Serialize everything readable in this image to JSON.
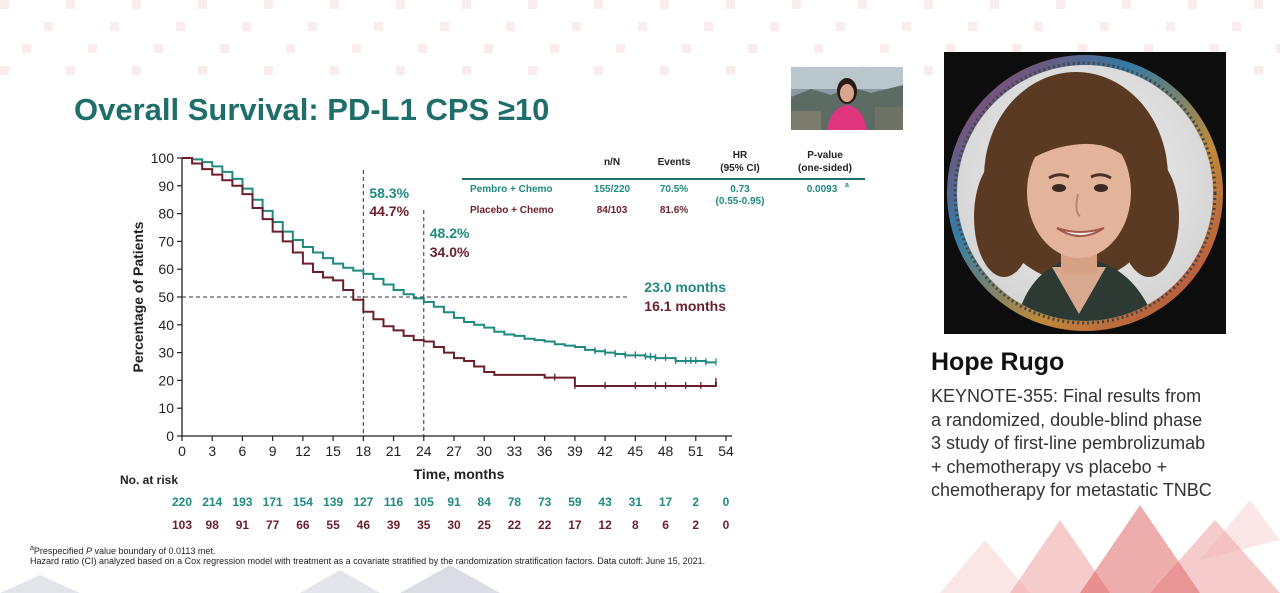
{
  "slide": {
    "title": "Overall Survival: PD-L1 CPS ≥10",
    "footnote_1_sup": "a",
    "footnote_1_pre": "Prespecified ",
    "footnote_1_italic": "P",
    "footnote_1_post": " value boundary of 0.0113 met.",
    "footnote_2": "Hazard ratio (CI) analyzed based on a Cox regression model with treatment as a covariate stratified by the randomization stratification factors. Data cutoff: June 15, 2021."
  },
  "stats_table": {
    "headers": {
      "n": "n/N",
      "events": "Events",
      "hr_line1": "HR",
      "hr_line2": "(95% CI)",
      "p_line1": "P-value",
      "p_line2": "(one-sided)"
    },
    "rows": [
      {
        "name": "Pembro + Chemo",
        "n": "155/220",
        "events": "70.5%",
        "hr": "0.73",
        "hr_ci": "(0.55-0.95)",
        "p": "0.0093",
        "p_sup": "a"
      },
      {
        "name": "Placebo + Chemo",
        "n": "84/103",
        "events": "81.6%"
      }
    ]
  },
  "colors": {
    "pembro": "#1f8a80",
    "placebo": "#6b1f2c",
    "title": "#1f6e6b"
  },
  "chart_data": {
    "type": "line",
    "title": "",
    "xlabel": "Time, months",
    "ylabel": "Percentage of Patients",
    "xlim": [
      0,
      54
    ],
    "ylim": [
      0,
      100
    ],
    "x_ticks": [
      0,
      3,
      6,
      9,
      12,
      15,
      18,
      21,
      24,
      27,
      30,
      33,
      36,
      39,
      42,
      45,
      48,
      51,
      54
    ],
    "y_ticks": [
      0,
      10,
      20,
      30,
      40,
      50,
      60,
      70,
      80,
      90,
      100
    ],
    "grid": false,
    "series": [
      {
        "name": "Pembro + Chemo",
        "color": "#1f8a80",
        "points": [
          [
            0,
            100
          ],
          [
            1,
            99.5
          ],
          [
            2,
            98.5
          ],
          [
            3,
            97
          ],
          [
            4,
            95
          ],
          [
            5,
            92.5
          ],
          [
            6,
            89
          ],
          [
            7,
            85
          ],
          [
            8,
            81
          ],
          [
            9,
            77
          ],
          [
            10,
            73.5
          ],
          [
            11,
            70.5
          ],
          [
            12,
            68
          ],
          [
            13,
            66
          ],
          [
            14,
            64
          ],
          [
            15,
            62
          ],
          [
            16,
            60.5
          ],
          [
            17,
            59.5
          ],
          [
            18,
            58.3
          ],
          [
            19,
            56.5
          ],
          [
            20,
            54.5
          ],
          [
            21,
            52.5
          ],
          [
            22,
            51
          ],
          [
            23,
            49.5
          ],
          [
            24,
            48.2
          ],
          [
            25,
            46.5
          ],
          [
            26,
            44.5
          ],
          [
            27,
            42.5
          ],
          [
            28,
            41
          ],
          [
            29,
            40
          ],
          [
            30,
            39
          ],
          [
            31,
            37.5
          ],
          [
            32,
            36.5
          ],
          [
            33,
            36
          ],
          [
            34,
            35
          ],
          [
            35,
            34.5
          ],
          [
            36,
            34
          ],
          [
            37,
            33
          ],
          [
            38,
            32.5
          ],
          [
            39,
            32
          ],
          [
            40,
            31
          ],
          [
            41,
            30.5
          ],
          [
            42,
            30
          ],
          [
            43,
            29.5
          ],
          [
            44,
            29
          ],
          [
            45,
            29
          ],
          [
            46,
            28.5
          ],
          [
            47,
            28
          ],
          [
            48,
            28
          ],
          [
            49,
            27
          ],
          [
            50,
            27
          ],
          [
            51,
            27
          ],
          [
            52,
            26.5
          ],
          [
            53,
            26.5
          ]
        ],
        "censor_x": [
          4,
          41,
          42,
          43,
          44,
          45,
          46,
          46.5,
          47,
          48,
          49,
          50,
          50.5,
          51,
          52,
          53
        ]
      },
      {
        "name": "Placebo + Chemo",
        "color": "#6b1f2c",
        "points": [
          [
            0,
            100
          ],
          [
            1,
            98
          ],
          [
            2,
            96
          ],
          [
            3,
            94
          ],
          [
            4,
            92
          ],
          [
            5,
            90
          ],
          [
            6,
            87
          ],
          [
            7,
            82
          ],
          [
            8,
            78
          ],
          [
            9,
            73.5
          ],
          [
            10,
            70
          ],
          [
            11,
            66
          ],
          [
            12,
            62
          ],
          [
            13,
            59
          ],
          [
            14,
            57
          ],
          [
            15,
            56
          ],
          [
            16,
            52.5
          ],
          [
            17,
            49
          ],
          [
            18,
            44.7
          ],
          [
            19,
            42
          ],
          [
            20,
            39.5
          ],
          [
            21,
            38
          ],
          [
            22,
            36
          ],
          [
            23,
            34.5
          ],
          [
            24,
            34
          ],
          [
            25,
            32
          ],
          [
            26,
            30
          ],
          [
            27,
            28
          ],
          [
            28,
            27
          ],
          [
            29,
            25
          ],
          [
            30,
            23
          ],
          [
            31,
            22
          ],
          [
            32,
            22
          ],
          [
            33,
            22
          ],
          [
            34,
            22
          ],
          [
            35,
            22
          ],
          [
            36,
            21
          ],
          [
            37,
            21
          ],
          [
            38,
            21
          ],
          [
            39,
            18
          ],
          [
            40,
            18
          ],
          [
            44,
            18
          ],
          [
            48,
            18
          ],
          [
            53,
            19.5
          ]
        ],
        "censor_x": [
          37,
          39,
          42,
          45,
          47,
          48,
          50,
          51.5,
          53
        ]
      }
    ],
    "annotations": [
      {
        "x": 18,
        "label_top": "58.3%",
        "label_bottom": "44.7%"
      },
      {
        "x": 24,
        "label_top": "48.2%",
        "label_bottom": "34.0%"
      },
      {
        "y": 50,
        "label_top": "23.0 months",
        "label_bottom": "16.1 months"
      }
    ],
    "risk_table": {
      "title": "No. at risk",
      "pembro": [
        "220",
        "214",
        "193",
        "171",
        "154",
        "139",
        "127",
        "116",
        "105",
        "91",
        "84",
        "78",
        "73",
        "59",
        "43",
        "31",
        "17",
        "2",
        "0"
      ],
      "placebo": [
        "103",
        "98",
        "91",
        "77",
        "66",
        "55",
        "46",
        "39",
        "35",
        "30",
        "25",
        "22",
        "22",
        "17",
        "12",
        "8",
        "6",
        "2",
        "0"
      ]
    }
  },
  "webcam": {
    "label": "presenter-webcam"
  },
  "speaker": {
    "name": "Hope Rugo",
    "description_lines": [
      "KEYNOTE-355: Final results from",
      "a randomized, double-blind phase",
      "3 study of first-line pembrolizumab",
      "+ chemotherapy vs placebo +",
      "chemotherapy for metastatic TNBC"
    ]
  }
}
